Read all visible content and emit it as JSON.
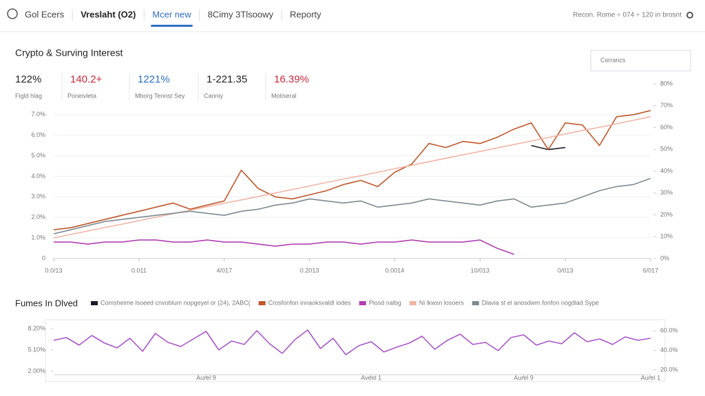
{
  "nav": {
    "items": [
      "Gol Ecers",
      "Vreslaht (O2)",
      "Mcer new",
      "8Cimy 3Tlsoowy",
      "Reporty"
    ],
    "active": 2,
    "right": "Recon. Rome ÷ 074 ÷ 120 in brosnt"
  },
  "search": "Corrancs",
  "stats": [
    {
      "value": "122%",
      "label": "Figld hlag",
      "color": "#222222"
    },
    {
      "value": "140.2+",
      "label": "Poneivleta",
      "color": "#c8283a"
    },
    {
      "value": "1221%",
      "label": "Mborg Tennst Sey",
      "color": "#2f6fc0"
    },
    {
      "value": "1-221.35",
      "label": "Canniy",
      "color": "#222222"
    },
    {
      "value": "16.39%",
      "label": "Motiseral",
      "color": "#c8283a"
    }
  ],
  "main_chart": {
    "type": "line",
    "title": "Crypto & Surving Interest",
    "x": [
      0,
      1,
      2,
      3,
      4,
      5,
      6,
      7,
      8,
      9,
      10,
      11,
      12,
      13,
      14,
      15,
      16,
      17,
      18,
      19,
      20,
      21,
      22,
      23,
      24,
      25,
      26,
      27,
      28,
      29,
      30,
      31,
      32,
      33,
      34,
      35
    ],
    "xlim": [
      0,
      35
    ],
    "xticks": [
      {
        "value": 0,
        "label": "0.0/13"
      },
      {
        "value": 5,
        "label": "0.011"
      },
      {
        "value": 10,
        "label": "4/017"
      },
      {
        "value": 15,
        "label": "0.2013"
      },
      {
        "value": 20,
        "label": "0.0014"
      },
      {
        "value": 25,
        "label": "10/013"
      },
      {
        "value": 30,
        "label": "0/013"
      },
      {
        "value": 35,
        "label": "6/017"
      }
    ],
    "ylim": [
      0,
      8.5
    ],
    "yticks": [
      0,
      {
        "value": 1,
        "label": "1.0%"
      },
      {
        "value": 2,
        "label": "2.0%"
      },
      {
        "value": 3,
        "label": "3.0%"
      },
      {
        "value": 4,
        "label": "4.0%"
      },
      {
        "value": 5,
        "label": "5.0%"
      },
      {
        "value": 6,
        "label": "6.0%"
      },
      {
        "value": 7,
        "label": "7.0%"
      }
    ],
    "y2lim": [
      0,
      80
    ],
    "y2ticks": [
      {
        "value": 0,
        "label": "0%"
      },
      {
        "value": 10,
        "label": "10%"
      },
      {
        "value": 20,
        "label": "20%"
      },
      {
        "value": 30,
        "label": "30%"
      },
      {
        "value": 40,
        "label": "40%"
      },
      {
        "value": 50,
        "label": "50%"
      },
      {
        "value": 60,
        "label": "60%"
      },
      {
        "value": 70,
        "label": "70%"
      },
      {
        "value": 80,
        "label": "80%"
      }
    ],
    "grid": true,
    "series": [
      {
        "name": "Comsheime lsoeed cnvoblum nopgeyel or (24), 2ABC(",
        "color": "#1a1a2a",
        "values": [
          null,
          null,
          null,
          null,
          null,
          null,
          null,
          null,
          null,
          null,
          null,
          null,
          null,
          null,
          null,
          null,
          null,
          null,
          null,
          null,
          null,
          null,
          null,
          null,
          null,
          null,
          null,
          null,
          5.5,
          5.3,
          5.4,
          null,
          null,
          null,
          null,
          null
        ]
      },
      {
        "name": "Crosfonfon innaoksvaldl iodes",
        "color": "#c0562a",
        "values": [
          1.4,
          1.5,
          1.7,
          1.9,
          2.1,
          2.3,
          2.5,
          2.7,
          2.4,
          2.6,
          2.8,
          4.3,
          3.4,
          3.0,
          2.9,
          3.1,
          3.3,
          3.6,
          3.8,
          3.5,
          4.2,
          4.6,
          5.6,
          5.4,
          5.7,
          5.6,
          5.9,
          6.3,
          6.6,
          5.3,
          6.6,
          6.5,
          5.5,
          6.9,
          7.0,
          7.2
        ]
      },
      {
        "name": "Piosd nalbg",
        "color": "#b040b0",
        "values": [
          0.8,
          0.8,
          0.7,
          0.8,
          0.8,
          0.9,
          0.9,
          0.8,
          0.8,
          0.9,
          0.8,
          0.8,
          0.7,
          0.6,
          0.7,
          0.7,
          0.8,
          0.8,
          0.7,
          0.8,
          0.8,
          0.9,
          0.8,
          0.8,
          0.8,
          0.9,
          0.5,
          0.2,
          null,
          null,
          null,
          null,
          null,
          null,
          null,
          null
        ]
      },
      {
        "name": "Ni lkwsn losoers",
        "color": "#f0b4a4",
        "values": [
          1.0,
          1.17,
          1.34,
          1.51,
          1.67,
          1.84,
          2.01,
          2.18,
          2.35,
          2.52,
          2.69,
          2.85,
          3.02,
          3.19,
          3.36,
          3.53,
          3.7,
          3.87,
          4.03,
          4.2,
          4.37,
          4.54,
          4.71,
          4.88,
          5.05,
          5.21,
          5.38,
          5.55,
          5.72,
          5.89,
          6.06,
          6.23,
          6.39,
          6.56,
          6.73,
          6.9
        ]
      },
      {
        "name": "Dlavia st el anosdwm fonfon nogdlad Sype",
        "color": "#7d8a90",
        "values": [
          1.2,
          1.4,
          1.6,
          1.8,
          1.9,
          2.0,
          2.1,
          2.2,
          2.3,
          2.2,
          2.1,
          2.3,
          2.4,
          2.6,
          2.7,
          2.9,
          2.8,
          2.7,
          2.8,
          2.5,
          2.6,
          2.7,
          2.9,
          2.8,
          2.7,
          2.6,
          2.8,
          2.9,
          2.5,
          2.6,
          2.7,
          3.0,
          3.3,
          3.5,
          3.6,
          3.9
        ]
      }
    ]
  },
  "sub_chart": {
    "type": "line",
    "title": "Fumes In Dlved",
    "x": [
      0,
      1,
      2,
      3,
      4,
      5,
      6,
      7,
      8,
      9,
      10,
      11,
      12,
      13,
      14,
      15,
      16,
      17,
      18,
      19,
      20,
      21,
      22,
      23,
      24,
      25,
      26,
      27,
      28,
      29,
      30,
      31,
      32,
      33,
      34,
      35,
      36,
      37,
      38,
      39,
      40,
      41,
      42,
      43,
      44,
      45,
      46,
      47
    ],
    "xlim": [
      0,
      47
    ],
    "xticks": [
      {
        "value": 12,
        "label": "Aurel 9"
      },
      {
        "value": 25,
        "label": "Avest 1"
      },
      {
        "value": 37,
        "label": "Aurel 9"
      },
      {
        "value": 47,
        "label": "Aurel 1"
      }
    ],
    "ylim": [
      1.5,
      9
    ],
    "yticks": [
      {
        "value": 2,
        "label": "2.00%"
      },
      {
        "value": 5.1,
        "label": "5.10%"
      },
      {
        "value": 8.2,
        "label": "8.20%"
      }
    ],
    "y2lim": [
      15,
      68
    ],
    "y2ticks": [
      {
        "value": 20,
        "label": "20.0%"
      },
      {
        "value": 40,
        "label": "40.0%"
      },
      {
        "value": 60,
        "label": "60.0%"
      }
    ],
    "series": [
      {
        "color": "#a855c8",
        "values": [
          6.5,
          6.9,
          5.8,
          7.2,
          6.1,
          5.4,
          6.8,
          4.9,
          7.5,
          6.2,
          5.6,
          6.7,
          7.8,
          5.1,
          6.4,
          5.9,
          7.9,
          6.0,
          4.6,
          6.6,
          8.0,
          5.3,
          6.8,
          4.4,
          5.7,
          6.3,
          4.8,
          5.5,
          6.1,
          7.1,
          5.2,
          6.5,
          7.4,
          5.9,
          6.2,
          5.0,
          6.9,
          7.3,
          5.8,
          6.4,
          6.0,
          7.6,
          6.3,
          6.7,
          5.9,
          7.0,
          6.5,
          6.8
        ]
      }
    ]
  }
}
